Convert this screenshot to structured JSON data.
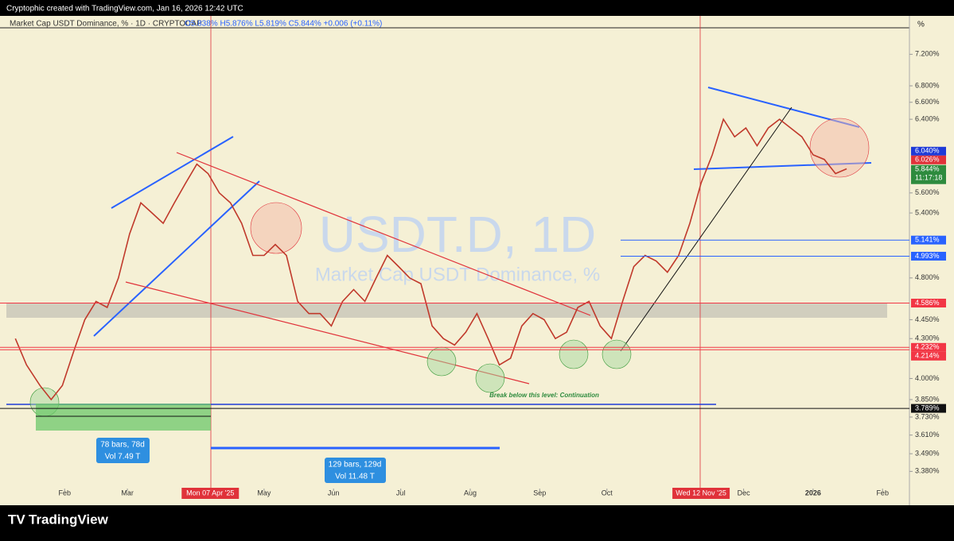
{
  "header": {
    "credit": "Cryptophic created with TradingView.com, Jan 16, 2026 12:42 UTC",
    "legend": "Market Cap USDT Dominance, % · 1D · CRYPTOCAP",
    "ohlc": "O5.838%  H5.876%  L5.819%  C5.844%  +0.006 (+0.11%)"
  },
  "footer": {
    "brand": "TradingView"
  },
  "chart_data": {
    "type": "line",
    "watermark": "USDT.D, 1D",
    "watermark_sub": "Market Cap USDT Dominance, %",
    "axis_unit": "%",
    "log_scale": true,
    "color": "#c0392b",
    "x": [
      9,
      14,
      20,
      25,
      30,
      35,
      40,
      45,
      50,
      55,
      60,
      65,
      70,
      75,
      80,
      85,
      90,
      95,
      100,
      105,
      110,
      115,
      120,
      125,
      130,
      135,
      140,
      145,
      150,
      155,
      160,
      165,
      170,
      175,
      180,
      185,
      190,
      195,
      200,
      205,
      210,
      215,
      220,
      225,
      230,
      235,
      240,
      245,
      250,
      255,
      260,
      265,
      270,
      275,
      280,
      285,
      290,
      295,
      300,
      305,
      310,
      315,
      320,
      325,
      330,
      335,
      340,
      345,
      350,
      355,
      360,
      365,
      370,
      375,
      380
    ],
    "values": [
      4.3,
      4.1,
      3.95,
      3.85,
      3.95,
      4.2,
      4.45,
      4.6,
      4.55,
      4.8,
      5.2,
      5.5,
      5.4,
      5.3,
      5.5,
      5.7,
      5.9,
      5.8,
      5.6,
      5.5,
      5.3,
      5.0,
      5.0,
      5.1,
      5.0,
      4.6,
      4.5,
      4.5,
      4.4,
      4.6,
      4.7,
      4.6,
      4.8,
      5.0,
      4.9,
      4.8,
      4.75,
      4.4,
      4.3,
      4.25,
      4.35,
      4.5,
      4.3,
      4.1,
      4.15,
      4.4,
      4.5,
      4.45,
      4.3,
      4.35,
      4.55,
      4.6,
      4.4,
      4.3,
      4.6,
      4.9,
      5.0,
      4.95,
      4.85,
      5.0,
      5.3,
      5.7,
      6.0,
      6.4,
      6.2,
      6.3,
      6.1,
      6.3,
      6.4,
      6.3,
      6.2,
      6.0,
      5.95,
      5.8,
      5.85
    ],
    "xlim": [
      5,
      408
    ],
    "ylim": [
      3.3,
      7.5
    ],
    "xticks": [
      {
        "value": 31,
        "label": "Feb"
      },
      {
        "value": 59,
        "label": "Mar"
      },
      {
        "value": 120,
        "label": "May"
      },
      {
        "value": 151,
        "label": "Jun"
      },
      {
        "value": 181,
        "label": "Jul"
      },
      {
        "value": 212,
        "label": "Aug"
      },
      {
        "value": 243,
        "label": "Sep"
      },
      {
        "value": 273,
        "label": "Oct"
      },
      {
        "value": 334,
        "label": "Dec"
      },
      {
        "value": 365,
        "label": "2026"
      },
      {
        "value": 396,
        "label": "Feb"
      }
    ],
    "date_markers": [
      {
        "value": 96,
        "label": "Mon 07 Apr '25"
      },
      {
        "value": 315,
        "label": "Wed 12 Nov '25"
      }
    ],
    "yticks": [
      {
        "value": 7.2,
        "label": "7.200%"
      },
      {
        "value": 6.8,
        "label": "6.800%"
      },
      {
        "value": 6.6,
        "label": "6.600%"
      },
      {
        "value": 6.4,
        "label": "6.400%"
      },
      {
        "value": 5.6,
        "label": "5.600%"
      },
      {
        "value": 5.4,
        "label": "5.400%"
      },
      {
        "value": 4.8,
        "label": "4.800%"
      },
      {
        "value": 4.45,
        "label": "4.450%"
      },
      {
        "value": 4.3,
        "label": "4.300%"
      },
      {
        "value": 4.0,
        "label": "4.000%"
      },
      {
        "value": 3.85,
        "label": "3.850%"
      },
      {
        "value": 3.73,
        "label": "3.730%"
      },
      {
        "value": 3.61,
        "label": "3.610%"
      },
      {
        "value": 3.49,
        "label": "3.490%"
      },
      {
        "value": 3.38,
        "label": "3.380%"
      }
    ],
    "price_labels": [
      {
        "value": 6.04,
        "label": "6.040%",
        "color": "#1e3ad8"
      },
      {
        "value": 6.026,
        "label": "6.026%",
        "color": "#e0323a"
      },
      {
        "value": 5.844,
        "label": "5.844%",
        "color": "#2e8b3e"
      },
      {
        "value": 5.141,
        "label": "5.141%",
        "color": "#2962ff"
      },
      {
        "value": 4.993,
        "label": "4.993%",
        "color": "#2962ff"
      },
      {
        "value": 4.586,
        "label": "4.586%",
        "color": "#f23645"
      },
      {
        "value": 4.232,
        "label": "4.232%",
        "color": "#f23645"
      },
      {
        "value": 4.214,
        "label": "4.214%",
        "color": "#f23645"
      },
      {
        "value": 3.789,
        "label": "3.789%",
        "color": "#111111"
      }
    ],
    "countdown": "11:17:18",
    "annotations": {
      "range1": "78 bars, 78d",
      "vol1": "Vol 7.49 T",
      "range2": "129 bars, 129d",
      "vol2": "Vol 11.48 T",
      "note": "Break below this level: Continuation"
    }
  }
}
